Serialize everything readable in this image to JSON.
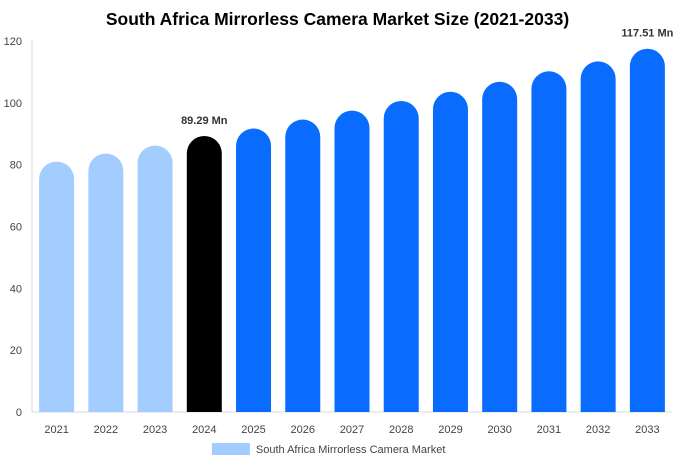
{
  "chart_data": {
    "type": "bar",
    "title": "South Africa Mirrorless Camera Market Size (2021-2033)",
    "xlabel": "",
    "ylabel": "",
    "categories": [
      "2021",
      "2022",
      "2023",
      "2024",
      "2025",
      "2026",
      "2027",
      "2028",
      "2029",
      "2030",
      "2031",
      "2032",
      "2033"
    ],
    "series": [
      {
        "name": "South Africa Mirrorless Camera Market",
        "values": [
          81.0,
          83.6,
          86.2,
          89.29,
          91.7,
          94.6,
          97.5,
          100.6,
          103.6,
          106.8,
          110.2,
          113.4,
          117.51
        ]
      }
    ],
    "ylim": [
      0,
      120
    ],
    "yticks": [
      0,
      20,
      40,
      60,
      80,
      100,
      120
    ],
    "grid": false,
    "legend": "bottom-center",
    "colors": {
      "historical": "#a3cdff",
      "base_year": "#000000",
      "forecast": "#0a6cff",
      "legend_swatch": "#a3cdff"
    },
    "base_year_index": 3,
    "annotations": [
      {
        "category": "2024",
        "text": "89.29 Mn"
      },
      {
        "category": "2033",
        "text": "117.51 Mn"
      }
    ]
  }
}
